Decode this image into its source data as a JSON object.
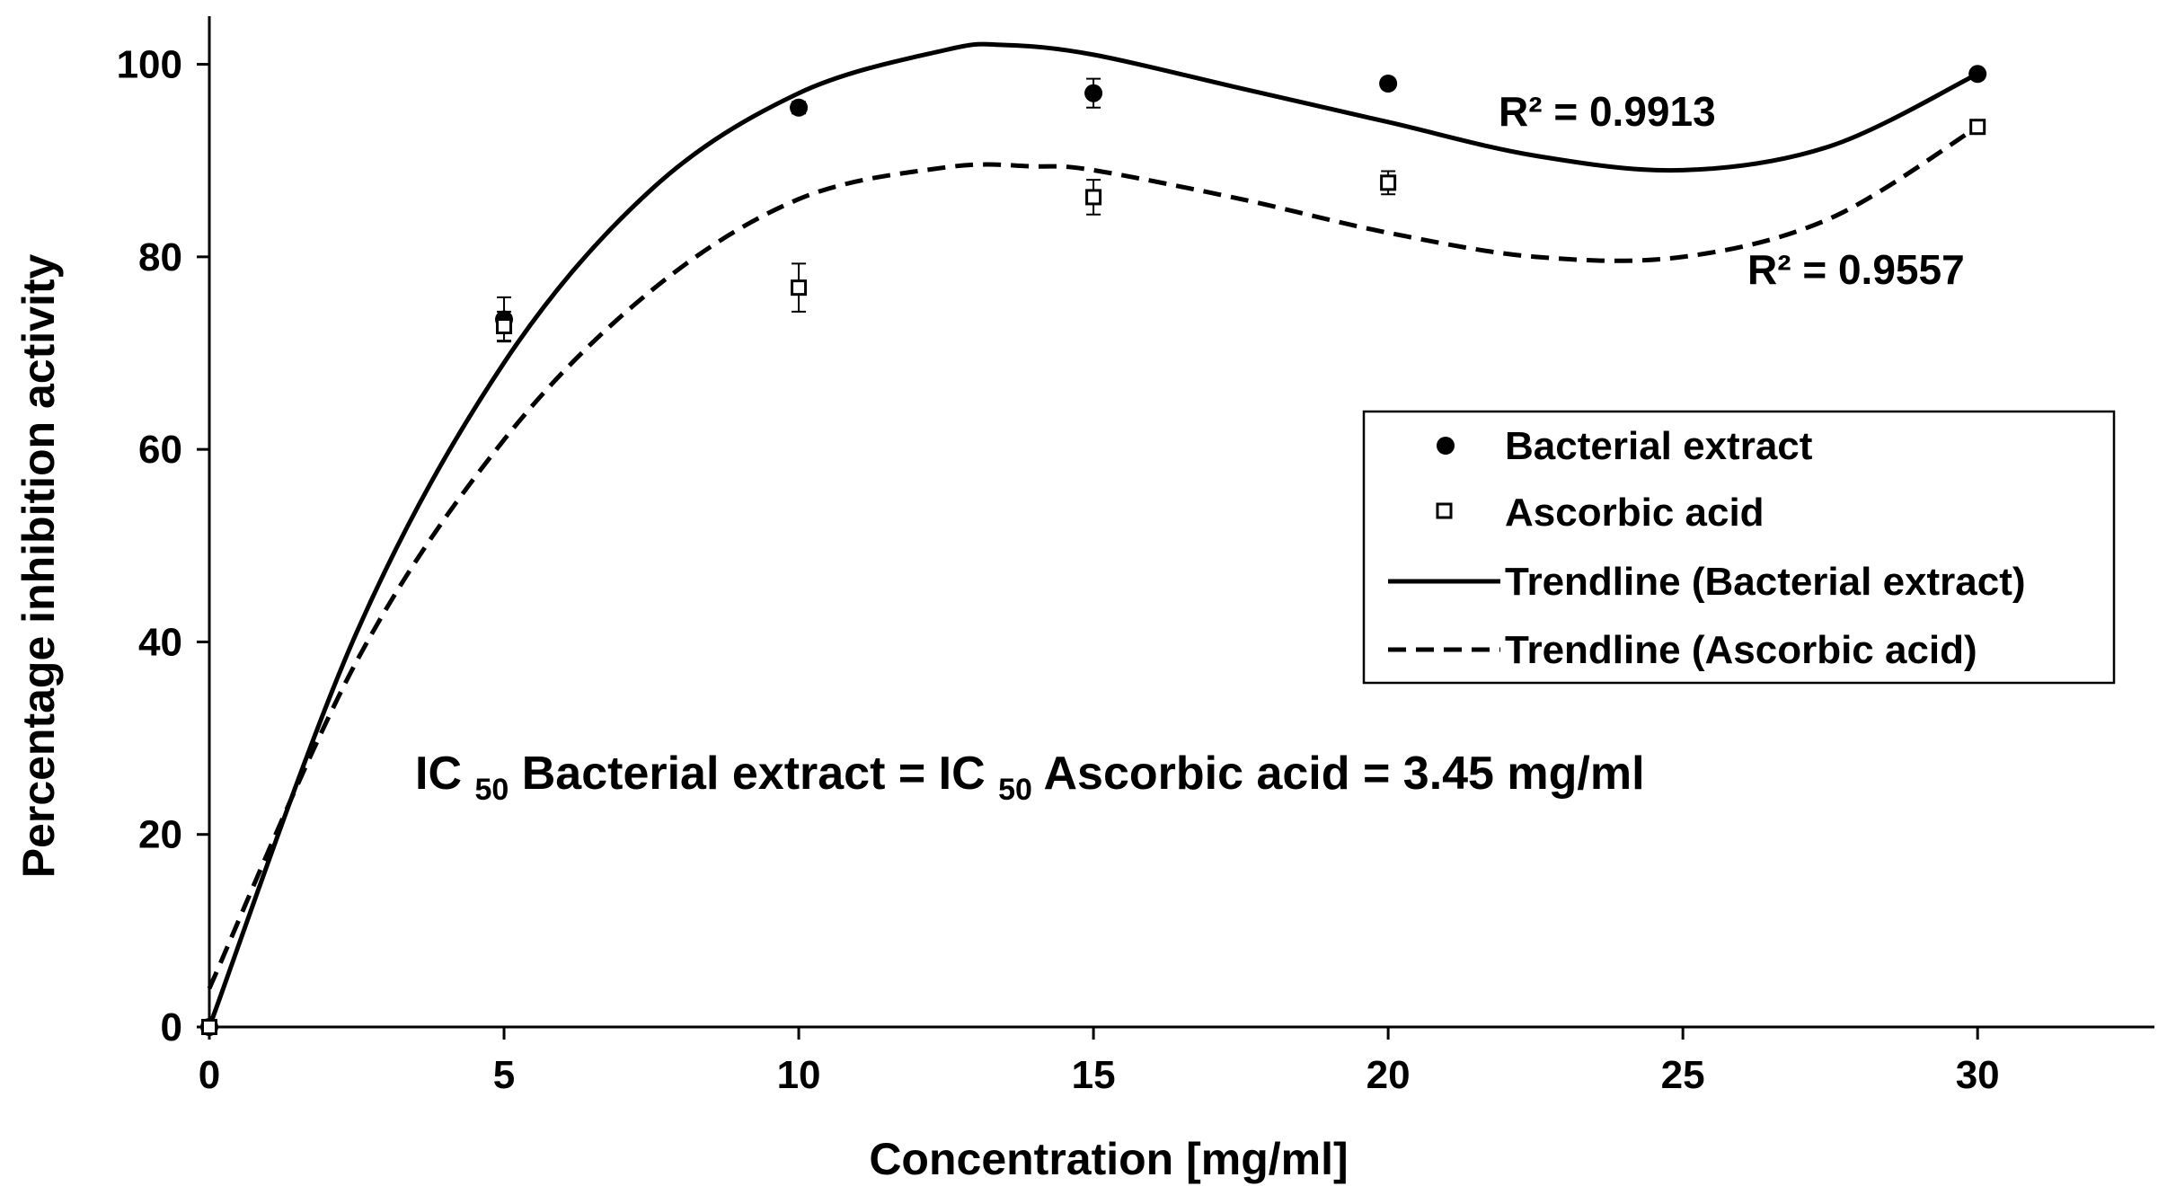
{
  "chart_data": {
    "type": "scatter",
    "title": "",
    "xlabel": "Concentration [mg/ml]",
    "ylabel": "Percentage inhibition activity",
    "xlim": [
      0,
      33
    ],
    "ylim": [
      0,
      105
    ],
    "xticks": [
      0,
      5,
      10,
      15,
      20,
      25,
      30
    ],
    "yticks": [
      0,
      20,
      40,
      60,
      80,
      100
    ],
    "grid": false,
    "legend_position": "center-right",
    "series": [
      {
        "name": "Bacterial extract",
        "marker": "filled-circle",
        "color": "#000000",
        "points": [
          {
            "x": 0,
            "y": 0,
            "err": 0
          },
          {
            "x": 5,
            "y": 73.5,
            "err": 2.3
          },
          {
            "x": 10,
            "y": 95.5,
            "err": 0.6
          },
          {
            "x": 15,
            "y": 97,
            "err": 1.5
          },
          {
            "x": 20,
            "y": 98,
            "err": 0.5
          },
          {
            "x": 30,
            "y": 99,
            "err": 0.4
          }
        ]
      },
      {
        "name": "Ascorbic acid",
        "marker": "open-square",
        "color": "#000000",
        "points": [
          {
            "x": 0,
            "y": 0,
            "err": 0
          },
          {
            "x": 5,
            "y": 72.8,
            "err": 1.5
          },
          {
            "x": 10,
            "y": 76.8,
            "err": 2.5
          },
          {
            "x": 15,
            "y": 86.2,
            "err": 1.8
          },
          {
            "x": 20,
            "y": 87.7,
            "err": 1.2
          },
          {
            "x": 30,
            "y": 93.5,
            "err": 0.5
          }
        ]
      },
      {
        "name": "Trendline (Bacterial extract)",
        "line": "solid",
        "color": "#000000",
        "r2_label": "R² = 0.9913",
        "curve": [
          {
            "x": 0,
            "y": 0
          },
          {
            "x": 2.5,
            "y": 41
          },
          {
            "x": 5,
            "y": 69
          },
          {
            "x": 7.5,
            "y": 87
          },
          {
            "x": 10,
            "y": 97
          },
          {
            "x": 12.5,
            "y": 101.5
          },
          {
            "x": 13.5,
            "y": 102
          },
          {
            "x": 15,
            "y": 101
          },
          {
            "x": 17.5,
            "y": 97.5
          },
          {
            "x": 20,
            "y": 94
          },
          {
            "x": 22.5,
            "y": 90.5
          },
          {
            "x": 25,
            "y": 89
          },
          {
            "x": 27.5,
            "y": 91.5
          },
          {
            "x": 30,
            "y": 99
          }
        ]
      },
      {
        "name": "Trendline (Ascorbic acid)",
        "line": "dashed",
        "color": "#000000",
        "r2_label": "R² = 0.9557",
        "curve": [
          {
            "x": 0,
            "y": 4
          },
          {
            "x": 2.5,
            "y": 38
          },
          {
            "x": 5,
            "y": 61
          },
          {
            "x": 7.5,
            "y": 76.5
          },
          {
            "x": 10,
            "y": 86
          },
          {
            "x": 12.5,
            "y": 89.3
          },
          {
            "x": 14,
            "y": 89.4
          },
          {
            "x": 15,
            "y": 89
          },
          {
            "x": 17.5,
            "y": 86
          },
          {
            "x": 20,
            "y": 82.5
          },
          {
            "x": 22.5,
            "y": 80
          },
          {
            "x": 25,
            "y": 80
          },
          {
            "x": 27.5,
            "y": 84
          },
          {
            "x": 30,
            "y": 93.5
          }
        ]
      }
    ],
    "annotation": {
      "parts": [
        "IC",
        "50",
        " Bacterial extract = IC",
        "50",
        " Ascorbic acid = 3.45 mg/ml"
      ]
    }
  }
}
